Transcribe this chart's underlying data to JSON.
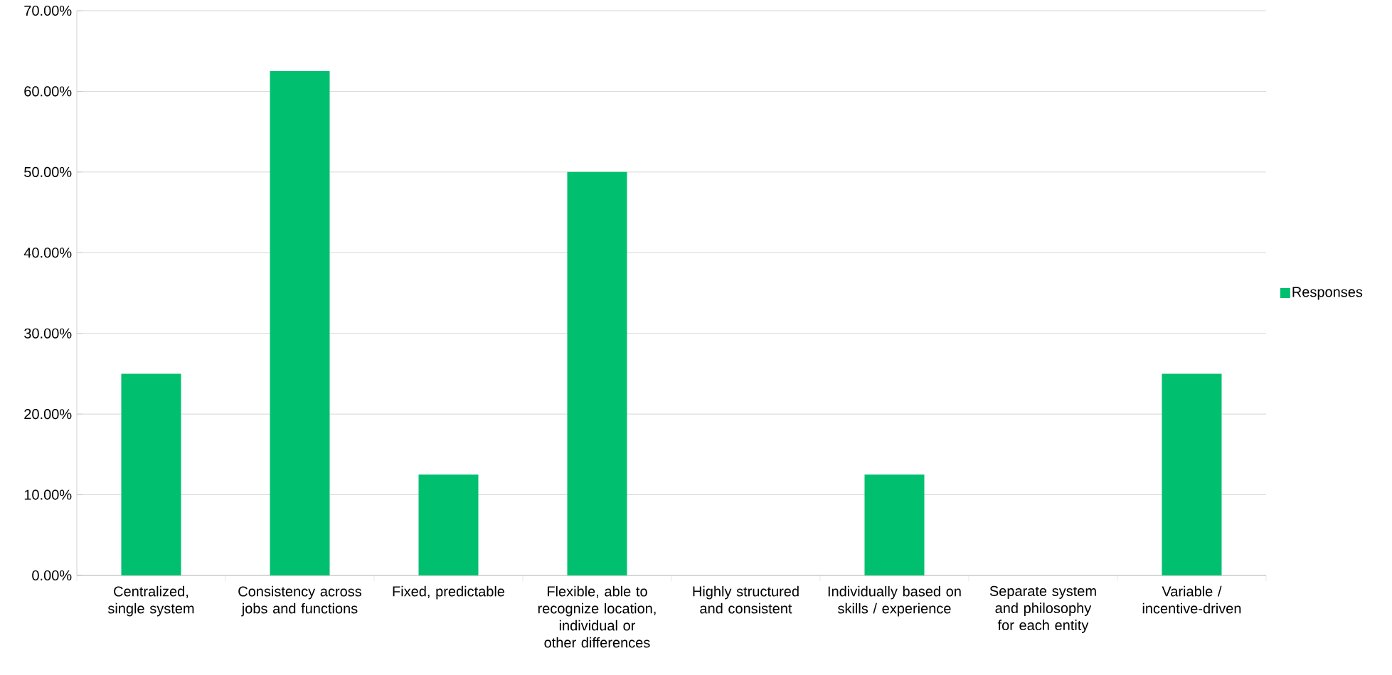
{
  "chart_data": {
    "type": "bar",
    "categories": [
      "Centralized, single system",
      "Consistency across jobs and functions",
      "Fixed, predictable",
      "Flexible, able to recognize location, individual or other differences",
      "Highly structured and consistent",
      "Individually based on skills / experience",
      "Separate system and philosophy for each entity",
      "Variable / incentive-driven"
    ],
    "series": [
      {
        "name": "Responses",
        "color": "#00bf6f",
        "values": [
          25,
          62.5,
          12.5,
          50,
          0,
          12.5,
          0,
          25
        ]
      }
    ],
    "ylim": [
      0,
      70
    ],
    "yticks": [
      {
        "value": 0,
        "label": "0.00%"
      },
      {
        "value": 10,
        "label": "10.00%"
      },
      {
        "value": 20,
        "label": "20.00%"
      },
      {
        "value": 30,
        "label": "30.00%"
      },
      {
        "value": 40,
        "label": "40.00%"
      },
      {
        "value": 50,
        "label": "50.00%"
      },
      {
        "value": 60,
        "label": "60.00%"
      },
      {
        "value": 70,
        "label": "70.00%"
      }
    ],
    "grid": "y",
    "legend": "right"
  }
}
